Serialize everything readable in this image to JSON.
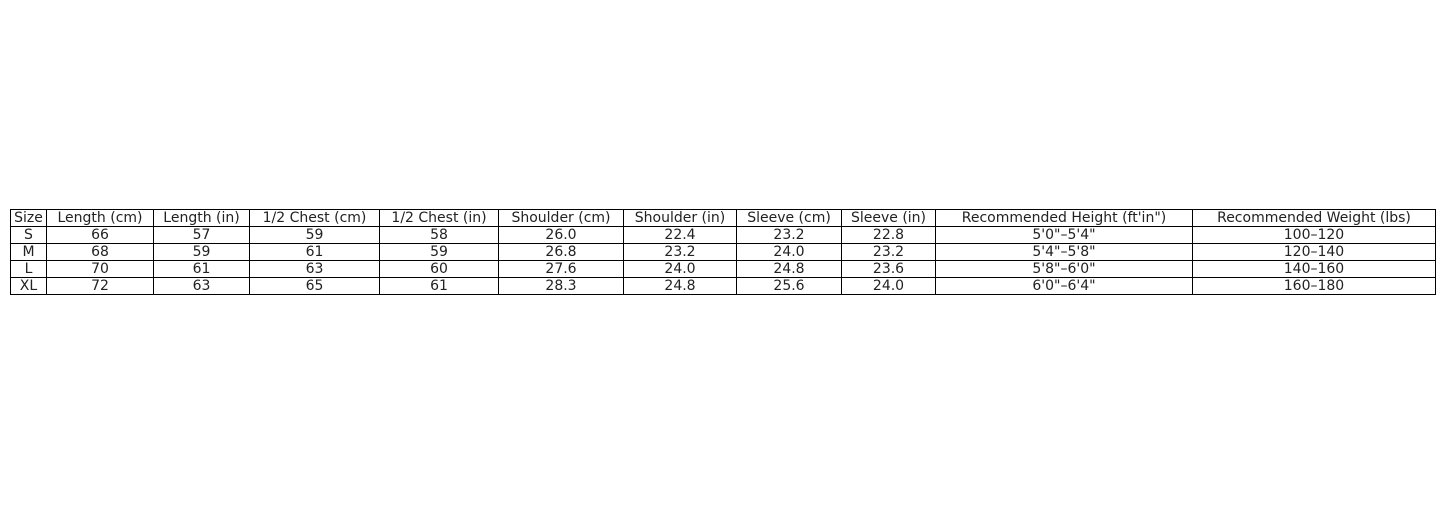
{
  "table": {
    "headers": [
      "Size",
      "Length (cm)",
      "Length (in)",
      "1/2 Chest (cm)",
      "1/2 Chest (in)",
      "Shoulder (cm)",
      "Shoulder (in)",
      "Sleeve (cm)",
      "Sleeve (in)",
      "Recommended Height (ft'in\")",
      "Recommended Weight (lbs)"
    ],
    "rows": [
      [
        "S",
        "66",
        "57",
        "59",
        "58",
        "26.0",
        "22.4",
        "23.2",
        "22.8",
        "5'0\"–5'4\"",
        "100–120"
      ],
      [
        "M",
        "68",
        "59",
        "61",
        "59",
        "26.8",
        "23.2",
        "24.0",
        "23.2",
        "5'4\"–5'8\"",
        "120–140"
      ],
      [
        "L",
        "70",
        "61",
        "63",
        "60",
        "27.6",
        "24.0",
        "24.8",
        "23.6",
        "5'8\"–6'0\"",
        "140–160"
      ],
      [
        "XL",
        "72",
        "63",
        "65",
        "61",
        "28.3",
        "24.8",
        "25.6",
        "24.0",
        "6'0\"–6'4\"",
        "160–180"
      ]
    ]
  }
}
